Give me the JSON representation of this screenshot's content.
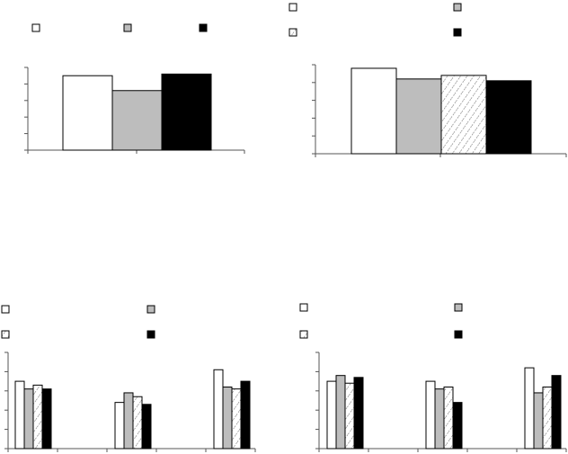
{
  "colors": {
    "white": "#ffffff",
    "gray": "#bdbdbd",
    "hatch": "#f2f2f2",
    "black": "#000000",
    "axis": "#555555",
    "outline": "#000000"
  },
  "chart_data": [
    {
      "id": "panel-a",
      "type": "bar",
      "title": "",
      "xlabel": "",
      "ylabel": "",
      "legend": {
        "placement": "top",
        "fills": [
          "white",
          "gray",
          "black"
        ]
      },
      "ylim": [
        0,
        5
      ],
      "categories": [
        ""
      ],
      "series": [
        {
          "fill": "white",
          "values": [
            4.5
          ]
        },
        {
          "fill": "gray",
          "values": [
            3.6
          ]
        },
        {
          "fill": "black",
          "values": [
            4.6
          ]
        }
      ],
      "grid": false
    },
    {
      "id": "panel-b",
      "type": "bar",
      "title": "",
      "xlabel": "",
      "ylabel": "",
      "legend": {
        "placement": "top",
        "fills": [
          "white",
          "gray",
          "hatch",
          "black"
        ]
      },
      "ylim": [
        0,
        5
      ],
      "categories": [
        ""
      ],
      "series": [
        {
          "fill": "white",
          "values": [
            4.8
          ]
        },
        {
          "fill": "gray",
          "values": [
            4.2
          ]
        },
        {
          "fill": "hatch",
          "values": [
            4.4
          ]
        },
        {
          "fill": "black",
          "values": [
            4.1
          ]
        }
      ],
      "grid": false
    },
    {
      "id": "panel-c",
      "type": "bar",
      "title": "",
      "xlabel": "",
      "ylabel": "",
      "legend": {
        "placement": "top",
        "fills": [
          "white",
          "gray",
          "hatch",
          "black"
        ]
      },
      "ylim": [
        0,
        5
      ],
      "categories": [
        "",
        "",
        ""
      ],
      "series": [
        {
          "fill": "white",
          "values": [
            3.5,
            2.4,
            4.1
          ]
        },
        {
          "fill": "gray",
          "values": [
            3.1,
            2.9,
            3.2
          ]
        },
        {
          "fill": "hatch",
          "values": [
            3.3,
            2.7,
            3.1
          ]
        },
        {
          "fill": "black",
          "values": [
            3.1,
            2.3,
            3.5
          ]
        }
      ],
      "grid": false
    },
    {
      "id": "panel-d",
      "type": "bar",
      "title": "",
      "xlabel": "",
      "ylabel": "",
      "legend": {
        "placement": "top",
        "fills": [
          "white",
          "gray",
          "hatch",
          "black"
        ]
      },
      "ylim": [
        0,
        5
      ],
      "categories": [
        "",
        "",
        ""
      ],
      "series": [
        {
          "fill": "white",
          "values": [
            3.5,
            3.5,
            4.2
          ]
        },
        {
          "fill": "gray",
          "values": [
            3.8,
            3.1,
            2.9
          ]
        },
        {
          "fill": "hatch",
          "values": [
            3.4,
            3.2,
            3.2
          ]
        },
        {
          "fill": "black",
          "values": [
            3.7,
            2.4,
            3.8
          ]
        }
      ],
      "grid": false
    }
  ]
}
